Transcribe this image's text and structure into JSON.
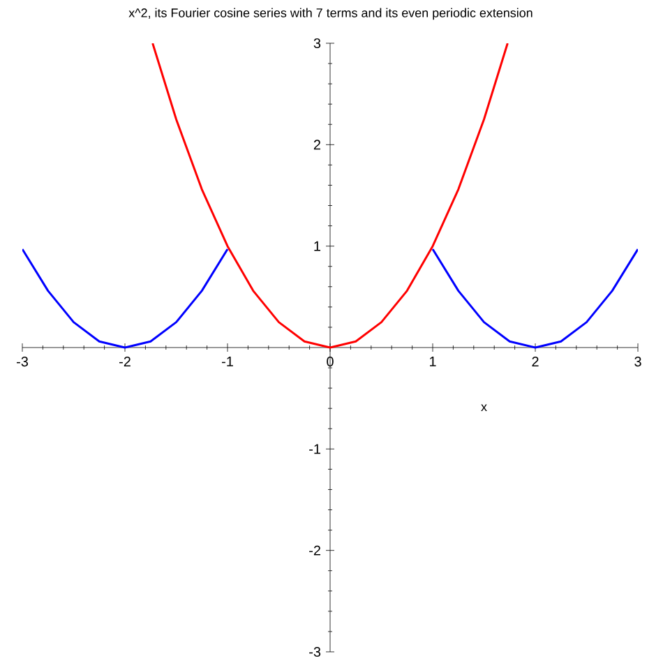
{
  "chart_data": {
    "type": "line",
    "title": "x^2, its Fourier cosine series with 7 terms and its even periodic extension",
    "xlabel": "x",
    "xlim": [
      -3,
      3
    ],
    "ylim": [
      -3,
      3
    ],
    "xticks": [
      -3,
      -2,
      -1,
      0,
      1,
      2,
      3
    ],
    "yticks": [
      -3,
      -2,
      -1,
      {
        "value": 0,
        "label": null
      },
      1,
      2,
      3
    ],
    "series": [
      {
        "color": "#0000ff",
        "x": [
          -3,
          -2.75,
          -2.5,
          -2.25,
          -2,
          -1.75,
          -1.5,
          -1.25,
          -1,
          -0.75,
          -0.5,
          -0.25,
          0,
          0.25,
          0.5,
          0.75,
          1,
          1.25,
          1.5,
          1.75,
          2,
          2.25,
          2.5,
          2.75,
          3
        ],
        "values": [
          0.97,
          0.56,
          0.25,
          0.06,
          0,
          0.06,
          0.25,
          0.56,
          0.97,
          null,
          null,
          null,
          null,
          null,
          null,
          null,
          0.97,
          0.56,
          0.25,
          0.06,
          0,
          0.06,
          0.25,
          0.56,
          0.97
        ]
      },
      {
        "color": "#ff0000",
        "x": [
          -1.73,
          -1.5,
          -1.25,
          -1,
          -0.75,
          -0.5,
          -0.25,
          0,
          0.25,
          0.5,
          0.75,
          1,
          1.25,
          1.5,
          1.73
        ],
        "values": [
          3,
          2.25,
          1.56,
          1,
          0.56,
          0.25,
          0.06,
          0,
          0.06,
          0.25,
          0.56,
          1,
          1.56,
          2.25,
          3
        ]
      }
    ]
  }
}
